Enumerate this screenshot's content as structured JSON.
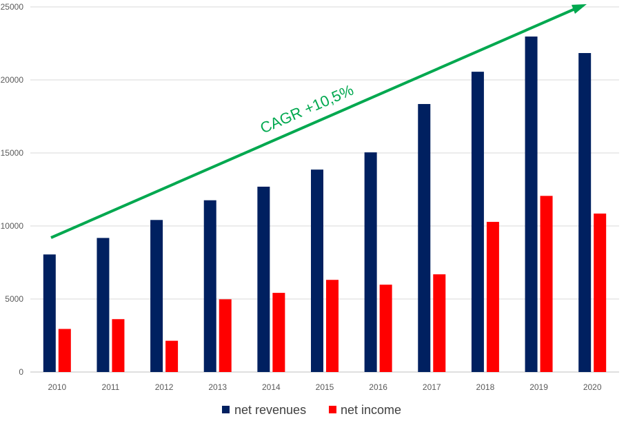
{
  "chart_data": {
    "type": "bar",
    "categories": [
      "2010",
      "2011",
      "2012",
      "2013",
      "2014",
      "2015",
      "2016",
      "2017",
      "2018",
      "2019",
      "2020"
    ],
    "series": [
      {
        "name": "net revenues",
        "color": "#002060",
        "values": [
          8050,
          9180,
          10410,
          11760,
          12690,
          13860,
          15040,
          18350,
          20560,
          22970,
          21840
        ]
      },
      {
        "name": "net income",
        "color": "#ff0000",
        "values": [
          2950,
          3620,
          2140,
          4980,
          5420,
          6310,
          5980,
          6690,
          10280,
          12060,
          10850
        ]
      }
    ],
    "ylim": [
      0,
      25000
    ],
    "yticks": [
      "0",
      "5000",
      "10000",
      "15000",
      "20000",
      "25000"
    ],
    "grid": true,
    "legend": "bottom",
    "annotation": {
      "text": "CAGR +10,5%",
      "color": "#00a84f"
    }
  }
}
